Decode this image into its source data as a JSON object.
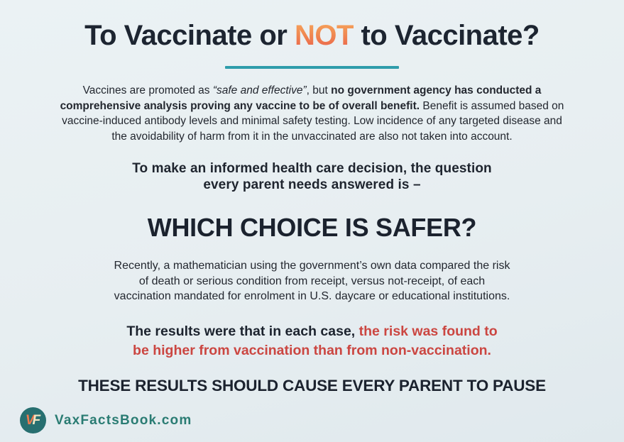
{
  "page": {
    "title": {
      "part1": "To Vaccinate or ",
      "highlight": "NOT",
      "part2": " to Vaccinate?"
    },
    "intro": [
      {
        "text": "Vaccines are promoted as "
      },
      {
        "text": "“safe and effective”",
        "italic": true
      },
      {
        "text": ", but "
      },
      {
        "text": "no government agency has conducted a",
        "bold": true
      },
      {
        "br": true
      },
      {
        "text": "comprehensive analysis proving any vaccine to be of overall benefit.",
        "bold": true
      },
      {
        "text": " Benefit is assumed based on"
      },
      {
        "br": true
      },
      {
        "text": "vaccine-induced antibody levels and minimal safety testing. Low incidence of any targeted disease and"
      },
      {
        "br": true
      },
      {
        "text": "the avoidability of harm from it in the unvaccinated are also not taken into account."
      }
    ],
    "question": [
      {
        "text": "To make an informed health care decision, the question"
      },
      {
        "br": true
      },
      {
        "text": "every parent needs answered is –"
      }
    ],
    "which_heading": "WHICH CHOICE IS SAFER?",
    "study": [
      {
        "text": "Recently, a mathematician using the government’s own data compared the risk"
      },
      {
        "br": true
      },
      {
        "text": "of death or serious condition from receipt, versus not-receipt, of each"
      },
      {
        "br": true
      },
      {
        "text": "vaccination mandated for enrolment in U.S. daycare or educational institutions."
      }
    ],
    "results": [
      {
        "text": "The results were that in each case, ",
        "bold": true
      },
      {
        "text": "the risk was found to",
        "bold": true,
        "class": "seg-red"
      },
      {
        "br": true
      },
      {
        "text": "be higher from vaccination than from non-vaccination.",
        "bold": true,
        "class": "seg-red"
      }
    ],
    "pause_heading": "THESE RESULTS SHOULD CAUSE EVERY PARENT TO PAUSE",
    "footer": {
      "logo_v": "V",
      "logo_f": "F",
      "site": "VaxFactsBook.com"
    }
  },
  "colors": {
    "background": "#e7eef1",
    "title_navy": "#1d2531",
    "highlight_orange_top": "#f8a85c",
    "highlight_orange_bottom": "#ea5f4a",
    "divider_teal": "#2f9dab",
    "accent_red": "#cb4641",
    "footer_teal": "#2a7c73",
    "logo_circle_teal": "#276f70",
    "logo_v_orange": "#ee7a4e",
    "logo_f_cream": "#f3e6c3"
  }
}
